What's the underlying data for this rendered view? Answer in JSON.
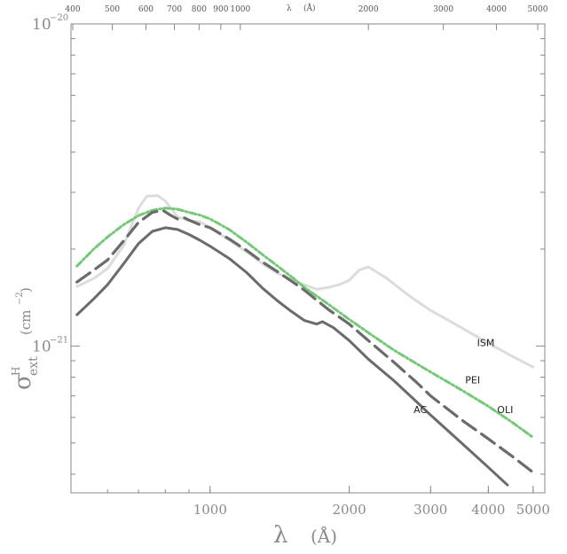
{
  "chart_data": {
    "type": "line",
    "title": "",
    "x_scale": "log",
    "y_scale": "log",
    "xlim": [
      500,
      5300
    ],
    "ylim": [
      3.5e-22,
      1e-20
    ],
    "xlabel_bottom": "λ",
    "xlabel_bottom_unit": "(Å)",
    "xlabel_top": "λ",
    "xlabel_top_unit": "(Å)",
    "ylabel_symbol": "σ",
    "ylabel_superscript": "H",
    "ylabel_subscript": "ext",
    "ylabel_unit_base": "(cm",
    "ylabel_unit_exp": "−2",
    "ylabel_unit_close": ")",
    "bottom_ticks": [
      {
        "value": 1000,
        "label": "1000"
      },
      {
        "value": 2000,
        "label": "2000"
      },
      {
        "value": 3000,
        "label": "3000"
      },
      {
        "value": 4000,
        "label": "4000"
      },
      {
        "value": 5000,
        "label": "5000"
      }
    ],
    "top_ticks": [
      {
        "value": 400,
        "label": "400"
      },
      {
        "value": 500,
        "label": "500"
      },
      {
        "value": 600,
        "label": "600"
      },
      {
        "value": 700,
        "label": "700"
      },
      {
        "value": 800,
        "label": "800"
      },
      {
        "value": 900,
        "label": "900"
      },
      {
        "value": 1000,
        "label": "1000"
      },
      {
        "value": 2000,
        "label": "2000"
      },
      {
        "value": 3000,
        "label": "3000"
      },
      {
        "value": 4000,
        "label": "4000"
      },
      {
        "value": 5000,
        "label": "5000"
      }
    ],
    "y_ticks": [
      {
        "value": 1e-20,
        "base": "10",
        "exp": "−20"
      },
      {
        "value": 1e-21,
        "base": "10",
        "exp": "−21"
      }
    ],
    "series": [
      {
        "name": "ISM",
        "color": "#dcdcdc",
        "dash": "solid",
        "x": [
          515,
          560,
          600,
          650,
          700,
          730,
          770,
          800,
          850,
          900,
          950,
          1000,
          1100,
          1200,
          1300,
          1400,
          1500,
          1600,
          1700,
          1800,
          1900,
          2000,
          2100,
          2200,
          2400,
          2700,
          3000,
          3500,
          4000,
          4500,
          5000
        ],
        "y": [
          1.53e-21,
          1.62e-21,
          1.74e-21,
          2.05e-21,
          2.68e-21,
          2.92e-21,
          2.93e-21,
          2.82e-21,
          2.52e-21,
          2.45e-21,
          2.43e-21,
          2.33e-21,
          2.13e-21,
          1.96e-21,
          1.8e-21,
          1.68e-21,
          1.61e-21,
          1.55e-21,
          1.5e-21,
          1.52e-21,
          1.55e-21,
          1.6e-21,
          1.72e-21,
          1.76e-21,
          1.63e-21,
          1.43e-21,
          1.29e-21,
          1.14e-21,
          1.02e-21,
          9.3e-22,
          8.6e-22
        ]
      },
      {
        "name": "PEI",
        "color": "#74c876",
        "dash": "dashdot",
        "x": [
          515,
          560,
          600,
          650,
          700,
          750,
          800,
          850,
          900,
          950,
          1000,
          1100,
          1200,
          1300,
          1400,
          1500,
          1600,
          1800,
          2000,
          2200,
          2500,
          3000,
          3500,
          4000,
          4500,
          5000
        ],
        "y": [
          1.77e-21,
          2e-21,
          2.18e-21,
          2.38e-21,
          2.54e-21,
          2.64e-21,
          2.68e-21,
          2.66e-21,
          2.6e-21,
          2.55e-21,
          2.48e-21,
          2.3e-21,
          2.1e-21,
          1.92e-21,
          1.77e-21,
          1.64e-21,
          1.52e-21,
          1.35e-21,
          1.21e-21,
          1.1e-21,
          9.7e-22,
          8.3e-22,
          7.3e-22,
          6.5e-22,
          5.8e-22,
          5.2e-22
        ]
      },
      {
        "name": "OLI",
        "color": "#6b6b6b",
        "dash": "dashed",
        "x": [
          515,
          560,
          600,
          650,
          700,
          750,
          790,
          820,
          850,
          880,
          900,
          950,
          1000,
          1100,
          1200,
          1300,
          1400,
          1500,
          1600,
          1800,
          2000,
          2200,
          2500,
          2800,
          3000,
          3500,
          4000,
          4500,
          5000
        ],
        "y": [
          1.58e-21,
          1.72e-21,
          1.85e-21,
          2.12e-21,
          2.42e-21,
          2.6e-21,
          2.64e-21,
          2.55e-21,
          2.48e-21,
          2.5e-21,
          2.46e-21,
          2.38e-21,
          2.33e-21,
          2.15e-21,
          1.98e-21,
          1.82e-21,
          1.7e-21,
          1.59e-21,
          1.49e-21,
          1.3e-21,
          1.17e-21,
          1.04e-21,
          8.9e-22,
          7.7e-22,
          7e-22,
          5.9e-22,
          5.15e-22,
          4.55e-22,
          4.05e-22
        ]
      },
      {
        "name": "AC",
        "color": "#6b6b6b",
        "dash": "solid",
        "x": [
          515,
          560,
          600,
          650,
          700,
          750,
          800,
          850,
          900,
          950,
          1000,
          1100,
          1200,
          1300,
          1400,
          1500,
          1600,
          1700,
          1750,
          1850,
          2000,
          2200,
          2500,
          2800,
          3000,
          3500,
          4000,
          4400
        ],
        "y": [
          1.25e-21,
          1.4e-21,
          1.55e-21,
          1.8e-21,
          2.08e-21,
          2.27e-21,
          2.33e-21,
          2.3e-21,
          2.22e-21,
          2.13e-21,
          2.04e-21,
          1.87e-21,
          1.69e-21,
          1.51e-21,
          1.38e-21,
          1.28e-21,
          1.2e-21,
          1.17e-21,
          1.19e-21,
          1.14e-21,
          1.04e-21,
          9.1e-22,
          7.8e-22,
          6.7e-22,
          6.1e-22,
          5e-22,
          4.2e-22,
          3.7e-22
        ]
      }
    ],
    "annotations": [
      {
        "text": "ISM",
        "x": 3950,
        "y": 1e-21
      },
      {
        "text": "PEI",
        "x": 3700,
        "y": 7.65e-22
      },
      {
        "text": "OLI",
        "x": 4350,
        "y": 6.2e-22
      },
      {
        "text": "AC",
        "x": 2850,
        "y": 6.2e-22
      }
    ],
    "grid": false,
    "legend": "none"
  }
}
